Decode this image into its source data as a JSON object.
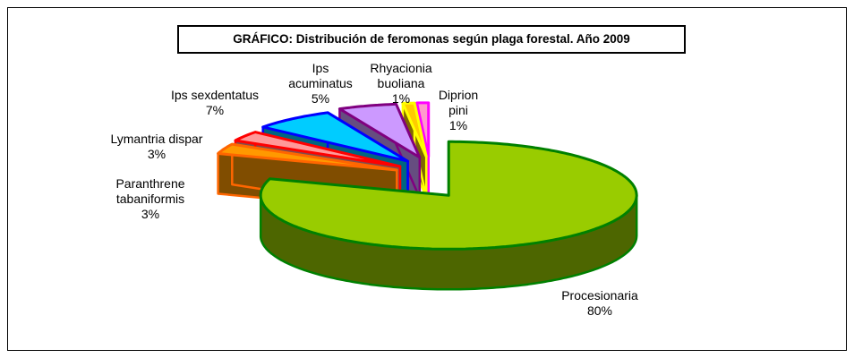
{
  "chart_data": {
    "type": "pie3d",
    "title": "GRÁFICO: Distribución de feromonas según plaga forestal. Año 2009",
    "categories": [
      "Procesionaria",
      "Paranthrene tabaniformis",
      "Lymantria dispar",
      "Ips sexdentatus",
      "Ips acuminatus",
      "Rhyacionia buoliana",
      "Diprion pini"
    ],
    "values": [
      80,
      3,
      3,
      7,
      5,
      1,
      1
    ],
    "value_labels": [
      "80%",
      "3%",
      "3%",
      "7%",
      "5%",
      "1%",
      "1%"
    ],
    "colors": [
      "#99cc00",
      "#ff9900",
      "#ff9999",
      "#00ccff",
      "#cc99ff",
      "#ffcc00",
      "#ff99cc"
    ],
    "edge_colors": [
      "#008000",
      "#ff6600",
      "#ff0000",
      "#0000ff",
      "#800080",
      "#ffff00",
      "#ff00ff"
    ]
  }
}
